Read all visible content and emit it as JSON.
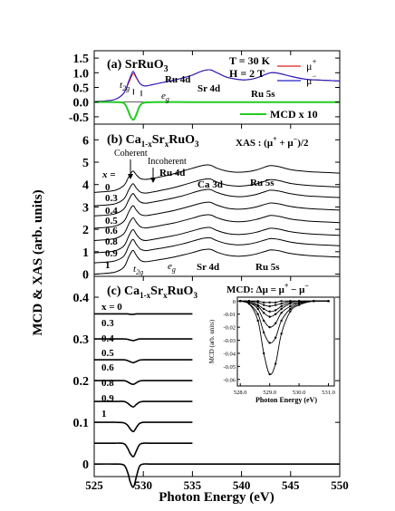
{
  "xlabel": "Photon Energy (eV)",
  "ylabel": "MCD & XAS (arb. units)",
  "x_ticks": [
    "525",
    "530",
    "535",
    "540",
    "545",
    "550"
  ],
  "panel_a": {
    "title_prefix": "(a) SrRuO",
    "title_sub": "3",
    "temp": "T = 30 K",
    "field": "H = 2 T",
    "y_ticks": [
      "1.5",
      "1.0",
      "0.5",
      "0.0",
      "-0.5"
    ],
    "legend": [
      {
        "label_main": "μ",
        "label_sup": "+",
        "color": "#e0201a"
      },
      {
        "label_main": "μ",
        "label_sup": "−",
        "color": "#2020c8"
      },
      {
        "label_main": "MCD x 10",
        "label_sup": "",
        "color": "#22cc22"
      }
    ],
    "ann": {
      "t2g_main": "t",
      "t2g_sub": "2g",
      "eg_main": "e",
      "eg_sub": "g",
      "ru4d": "Ru 4d",
      "sr4d": "Sr 4d",
      "ru5s": "Ru 5s"
    }
  },
  "panel_b": {
    "title_prefix": "(b) Ca",
    "title_sub1": "1-x",
    "title_mid": "Sr",
    "title_sub2": "x",
    "title_suffix": "RuO",
    "title_sub3": "3",
    "xas_label": "XAS : (μ",
    "xas_sup1": "+",
    "xas_plus": " + μ",
    "xas_sup2": "−",
    "xas_end": ")/2",
    "y_ticks": [
      "6",
      "5",
      "4",
      "3",
      "2",
      "1",
      "0"
    ],
    "x_eq": "x =",
    "x_values": [
      "0",
      "0.3",
      "0.4",
      "0.5",
      "0.6",
      "0.8",
      "0.9",
      "1"
    ],
    "ann": {
      "coherent": "Coherent",
      "incoherent": "Incoherent",
      "ru4d": "Ru 4d",
      "ca3d": "Ca 3d",
      "ru5s": "Ru 5s",
      "t2g_main": "t",
      "t2g_sub": "2g",
      "eg_main": "e",
      "eg_sub": "g",
      "sr4d": "Sr 4d",
      "ru5s_bottom": "Ru 5s"
    }
  },
  "panel_c": {
    "title_prefix": "(c) Ca",
    "title_sub1": "1-x",
    "title_mid": "Sr",
    "title_sub2": "x",
    "title_suffix": "RuO",
    "title_sub3": "3",
    "y_ticks": [
      "0.4",
      "0.3",
      "0.2",
      "0.1",
      "0"
    ],
    "x_labels": [
      "x = 0",
      "0.3",
      "0.4",
      "0.5",
      "0.6",
      "0.8",
      "0.9",
      "1"
    ],
    "inset": {
      "title": "MCD: Δμ = μ",
      "title_sup1": "+",
      "title_mid": " − μ",
      "title_sup2": "−",
      "ylabel": "MCD (arb. units)",
      "xlabel": "Photon Energy (eV)",
      "y_ticks": [
        "0",
        "-0.01",
        "-0.02",
        "-0.03",
        "-0.04",
        "-0.05",
        "-0.06"
      ],
      "x_ticks": [
        "528.0",
        "529.0",
        "530.0",
        "531.0"
      ]
    }
  },
  "chart_data": [
    {
      "type": "line",
      "panel": "a",
      "xlabel": "Photon Energy (eV)",
      "ylabel": "MCD & XAS (arb. units)",
      "xlim": [
        525,
        550
      ],
      "ylim": [
        -0.75,
        1.75
      ],
      "series": [
        {
          "name": "μ+",
          "color": "#e0201a",
          "x": [
            525,
            527,
            528,
            528.5,
            528.8,
            529.0,
            529.3,
            529.7,
            530.2,
            531,
            532,
            533,
            534,
            535,
            536,
            536.8,
            537.5,
            538.5,
            539.5,
            540.5,
            541.5,
            542.5,
            543,
            543.8,
            545,
            546.5,
            548,
            550
          ],
          "y": [
            0.02,
            0.08,
            0.3,
            0.65,
            0.88,
            0.98,
            0.82,
            0.62,
            0.55,
            0.6,
            0.67,
            0.74,
            0.82,
            0.92,
            1.06,
            1.1,
            1.0,
            0.85,
            0.78,
            0.76,
            0.82,
            0.95,
            1.0,
            0.98,
            0.88,
            0.78,
            0.75,
            0.72
          ]
        },
        {
          "name": "μ−",
          "color": "#2020c8",
          "x": [
            525,
            527,
            528,
            528.5,
            528.8,
            529.0,
            529.3,
            529.7,
            530.2,
            531,
            532,
            533,
            534,
            535,
            536,
            536.8,
            537.5,
            538.5,
            539.5,
            540.5,
            541.5,
            542.5,
            543,
            543.8,
            545,
            546.5,
            548,
            550
          ],
          "y": [
            0.02,
            0.08,
            0.3,
            0.7,
            0.96,
            1.04,
            0.84,
            0.62,
            0.55,
            0.6,
            0.67,
            0.74,
            0.82,
            0.92,
            1.06,
            1.1,
            1.0,
            0.85,
            0.78,
            0.76,
            0.82,
            0.95,
            1.0,
            0.98,
            0.88,
            0.78,
            0.75,
            0.72
          ]
        },
        {
          "name": "MCD x 10",
          "color": "#22cc22",
          "x": [
            525,
            527,
            528,
            528.4,
            528.7,
            529.0,
            529.3,
            529.6,
            530,
            531,
            535,
            540,
            545,
            550
          ],
          "y": [
            0.0,
            0.0,
            -0.03,
            -0.25,
            -0.5,
            -0.6,
            -0.42,
            -0.15,
            -0.03,
            0.0,
            0.0,
            0.0,
            0.0,
            0.0
          ]
        }
      ]
    },
    {
      "type": "line",
      "panel": "b",
      "xlim": [
        525,
        550
      ],
      "ylim": [
        -0.1,
        6.7
      ],
      "x": [
        525,
        527,
        528,
        528.5,
        528.8,
        529.0,
        529.3,
        529.7,
        530.2,
        531,
        532,
        533,
        534,
        535,
        536,
        536.8,
        537.5,
        538.5,
        539.5,
        540.5,
        541.5,
        542.5,
        543,
        543.8,
        545,
        546.5,
        548,
        550
      ],
      "series": [
        {
          "name": "x = 0",
          "offset": 3.65,
          "y": [
            0.0,
            0.08,
            0.3,
            0.68,
            0.9,
            0.95,
            0.78,
            0.62,
            0.58,
            0.63,
            0.72,
            0.82,
            0.95,
            1.08,
            1.2,
            1.22,
            1.08,
            0.95,
            0.9,
            0.92,
            1.0,
            1.15,
            1.2,
            1.15,
            1.02,
            0.94,
            0.9,
            0.86
          ]
        },
        {
          "name": "x = 0.3",
          "offset": 3.05,
          "y": [
            0.0,
            0.08,
            0.3,
            0.7,
            0.93,
            0.98,
            0.79,
            0.62,
            0.57,
            0.62,
            0.71,
            0.8,
            0.92,
            1.05,
            1.17,
            1.2,
            1.06,
            0.93,
            0.88,
            0.9,
            0.98,
            1.12,
            1.17,
            1.13,
            1.0,
            0.92,
            0.88,
            0.84
          ]
        },
        {
          "name": "x = 0.4",
          "offset": 2.6,
          "y": [
            0.0,
            0.08,
            0.3,
            0.7,
            0.94,
            0.99,
            0.8,
            0.62,
            0.57,
            0.62,
            0.7,
            0.79,
            0.9,
            1.03,
            1.15,
            1.18,
            1.05,
            0.92,
            0.86,
            0.88,
            0.96,
            1.1,
            1.15,
            1.11,
            0.99,
            0.9,
            0.86,
            0.82
          ]
        },
        {
          "name": "x = 0.5",
          "offset": 2.05,
          "y": [
            0.0,
            0.08,
            0.3,
            0.71,
            0.95,
            1.0,
            0.8,
            0.62,
            0.56,
            0.61,
            0.69,
            0.78,
            0.89,
            1.01,
            1.13,
            1.16,
            1.03,
            0.9,
            0.85,
            0.87,
            0.95,
            1.08,
            1.13,
            1.09,
            0.97,
            0.89,
            0.85,
            0.81
          ]
        },
        {
          "name": "x = 0.6",
          "offset": 1.5,
          "y": [
            0.0,
            0.08,
            0.3,
            0.72,
            0.96,
            1.01,
            0.81,
            0.62,
            0.56,
            0.61,
            0.69,
            0.77,
            0.88,
            1.0,
            1.12,
            1.15,
            1.02,
            0.89,
            0.84,
            0.86,
            0.94,
            1.07,
            1.12,
            1.08,
            0.96,
            0.88,
            0.84,
            0.8
          ]
        },
        {
          "name": "x = 0.8",
          "offset": 0.95,
          "y": [
            0.0,
            0.08,
            0.3,
            0.73,
            0.98,
            1.03,
            0.82,
            0.62,
            0.55,
            0.6,
            0.68,
            0.76,
            0.86,
            0.98,
            1.1,
            1.13,
            1.0,
            0.87,
            0.82,
            0.84,
            0.92,
            1.05,
            1.1,
            1.06,
            0.94,
            0.86,
            0.82,
            0.78
          ]
        },
        {
          "name": "x = 0.9",
          "offset": 0.5,
          "y": [
            0.0,
            0.08,
            0.3,
            0.74,
            0.99,
            1.04,
            0.82,
            0.62,
            0.55,
            0.6,
            0.67,
            0.75,
            0.85,
            0.97,
            1.09,
            1.12,
            0.99,
            0.86,
            0.81,
            0.83,
            0.91,
            1.04,
            1.09,
            1.05,
            0.93,
            0.85,
            0.81,
            0.77
          ]
        },
        {
          "name": "x = 1",
          "offset": 0.0,
          "y": [
            0.0,
            0.08,
            0.3,
            0.75,
            1.0,
            1.05,
            0.83,
            0.62,
            0.55,
            0.6,
            0.67,
            0.75,
            0.85,
            0.96,
            1.08,
            1.11,
            0.98,
            0.85,
            0.8,
            0.82,
            0.9,
            1.03,
            1.08,
            1.04,
            0.92,
            0.84,
            0.8,
            0.76
          ]
        }
      ]
    },
    {
      "type": "line",
      "panel": "c",
      "xlim": [
        525,
        550
      ],
      "ylim": [
        -0.03,
        0.45
      ],
      "x": [
        525,
        527,
        528,
        528.4,
        528.7,
        529.0,
        529.3,
        529.6,
        530,
        531,
        535,
        550
      ],
      "series": [
        {
          "name": "x = 0",
          "offset": 0.36,
          "y": [
            0,
            0,
            0,
            0,
            -0.001,
            -0.001,
            0,
            0,
            0,
            0,
            0,
            0
          ],
          "xend": 535
        },
        {
          "name": "x = 0.3",
          "offset": 0.3,
          "y": [
            0,
            0,
            0,
            -0.001,
            -0.003,
            -0.004,
            -0.002,
            0,
            0,
            0,
            0,
            0
          ],
          "xend": 535
        },
        {
          "name": "x = 0.4",
          "offset": 0.25,
          "y": [
            0,
            0,
            0,
            -0.002,
            -0.005,
            -0.007,
            -0.004,
            -0.001,
            0,
            0,
            0,
            0
          ],
          "xend": 535
        },
        {
          "name": "x = 0.5",
          "offset": 0.2,
          "y": [
            0,
            0,
            0,
            -0.003,
            -0.007,
            -0.009,
            -0.005,
            -0.001,
            0,
            0,
            0,
            0
          ],
          "xend": 535
        },
        {
          "name": "x = 0.6",
          "offset": 0.15,
          "y": [
            0,
            0,
            0,
            -0.004,
            -0.01,
            -0.013,
            -0.007,
            -0.002,
            0,
            0,
            0,
            0
          ],
          "xend": 535
        },
        {
          "name": "x = 0.8",
          "offset": 0.1,
          "y": [
            0,
            0,
            -0.001,
            -0.007,
            -0.017,
            -0.022,
            -0.012,
            -0.003,
            0,
            0,
            0,
            0
          ],
          "xend": 535
        },
        {
          "name": "x = 0.9",
          "offset": 0.05,
          "y": [
            0,
            0,
            -0.001,
            -0.012,
            -0.026,
            -0.032,
            -0.018,
            -0.004,
            0,
            0,
            0,
            0
          ],
          "xend": 535
        },
        {
          "name": "x = 1",
          "offset": 0.0,
          "y": [
            0,
            0,
            -0.002,
            -0.02,
            -0.045,
            -0.055,
            -0.03,
            -0.006,
            0,
            0,
            0,
            0
          ],
          "xend": 550
        }
      ]
    },
    {
      "type": "line",
      "panel": "c-inset",
      "xlim": [
        527.9,
        531.2
      ],
      "ylim": [
        -0.065,
        0.003
      ],
      "x": [
        528.0,
        528.3,
        528.6,
        528.8,
        529.0,
        529.2,
        529.4,
        529.7,
        530.0,
        530.5,
        531.0
      ],
      "series": [
        {
          "name": "x = 1",
          "y": [
            0,
            -0.002,
            -0.015,
            -0.04,
            -0.056,
            -0.048,
            -0.025,
            -0.008,
            -0.003,
            0,
            0
          ]
        },
        {
          "name": "x = 0.9",
          "y": [
            0,
            -0.002,
            -0.01,
            -0.024,
            -0.032,
            -0.028,
            -0.015,
            -0.006,
            -0.002,
            0,
            0
          ]
        },
        {
          "name": "x = 0.8",
          "y": [
            0,
            -0.001,
            -0.006,
            -0.015,
            -0.02,
            -0.017,
            -0.009,
            -0.004,
            -0.001,
            0,
            0
          ]
        },
        {
          "name": "x = 0.6",
          "y": [
            0,
            -0.001,
            -0.004,
            -0.009,
            -0.012,
            -0.01,
            -0.006,
            -0.002,
            -0.001,
            0,
            0
          ]
        },
        {
          "name": "x = 0.5",
          "y": [
            0,
            0,
            -0.003,
            -0.006,
            -0.008,
            -0.007,
            -0.004,
            -0.001,
            0,
            0,
            0
          ]
        },
        {
          "name": "x = 0.3",
          "y": [
            0,
            0,
            -0.001,
            -0.003,
            -0.004,
            -0.003,
            -0.002,
            0,
            0,
            0,
            0
          ]
        },
        {
          "name": "x = 0",
          "y": [
            0,
            0,
            0,
            -0.001,
            -0.001,
            -0.001,
            0,
            0,
            0,
            0,
            0
          ]
        }
      ]
    }
  ]
}
